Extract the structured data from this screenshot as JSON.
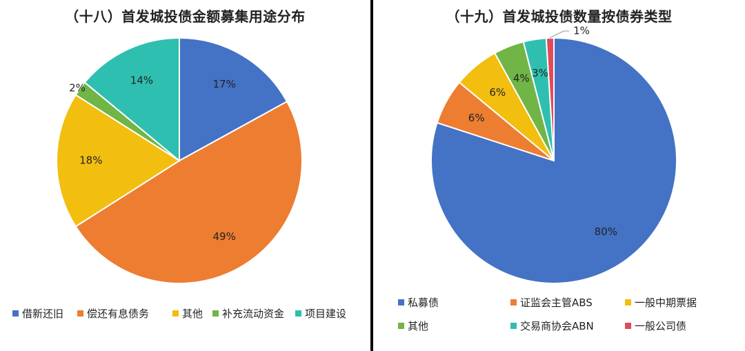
{
  "colors": {
    "blue": "#4472C4",
    "orange": "#ED7D31",
    "yellow": "#F2BE0F",
    "green": "#70B545",
    "teal": "#2FBFB0",
    "red": "#E04A5C"
  },
  "chart_data": [
    {
      "type": "pie",
      "title": "（十八）首发城投债金额募集用途分布",
      "categories": [
        "借新还旧",
        "偿还有息债务",
        "其他",
        "补充流动资金",
        "项目建设"
      ],
      "values": [
        17,
        49,
        18,
        2,
        14
      ],
      "data_labels": [
        "17%",
        "49%",
        "18%",
        "2%",
        "14%"
      ],
      "colors": [
        "#4472C4",
        "#ED7D31",
        "#F2BE0F",
        "#70B545",
        "#2FBFB0"
      ],
      "legend_position": "bottom"
    },
    {
      "type": "pie",
      "title": "（十九）首发城投债数量按债券类型",
      "categories": [
        "私募债",
        "证监会主管ABS",
        "一般中期票据",
        "其他",
        "交易商协会ABN",
        "一般公司债"
      ],
      "values": [
        80,
        6,
        6,
        4,
        3,
        1
      ],
      "data_labels": [
        "80%",
        "6%",
        "6%",
        "4%",
        "3%",
        "1%"
      ],
      "colors": [
        "#4472C4",
        "#ED7D31",
        "#F2BE0F",
        "#70B545",
        "#2FBFB0",
        "#E04A5C"
      ],
      "legend_position": "bottom"
    }
  ]
}
